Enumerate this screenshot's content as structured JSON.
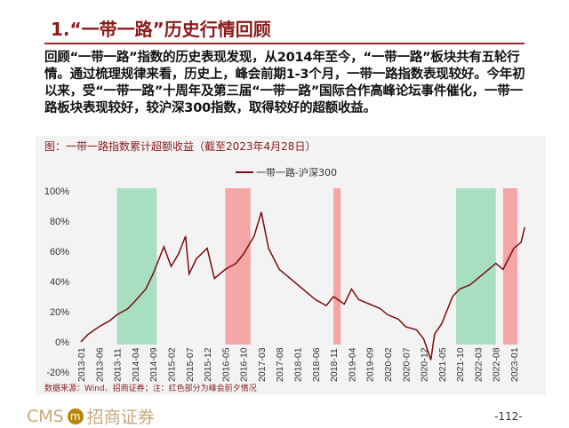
{
  "title": "1.“一带一路”历史行情回顾",
  "paragraph": "回顾“一带一路”指数的历史表现发现，从2014年至今，“一带一路”板块共有五轮行情。通过梳理规律来看，历史上，峰会前期1-3个月，一带一路指数表现较好。今年初以来，受“一带一路”十周年及第三届“一带一路”国际合作高峰论坛事件催化，一带一路板块表现较好，较沪深300指数，取得较好的超额收益。",
  "chart_caption": "图：一带一路指数累计超额收益（截至2023年4月28日）",
  "source": "数据来源：Wind、招商证券；注：红色部分为峰会前夕情况",
  "logo": "CMS 招商证券",
  "page_number": "-112-",
  "chart_data": {
    "type": "line",
    "legend": "一带一路-沪深300",
    "legend_position": "top",
    "line_color": "#7a0c0c",
    "ylim": [
      -20,
      100
    ],
    "y_ticks": [
      "-20%",
      "0%",
      "20%",
      "40%",
      "60%",
      "80%",
      "100%"
    ],
    "x_ticks": [
      "2013-01",
      "2013-06",
      "2013-11",
      "2014-04",
      "2014-09",
      "2015-02",
      "2015-07",
      "2015-12",
      "2016-05",
      "2016-10",
      "2017-03",
      "2017-08",
      "2018-01",
      "2018-06",
      "2018-11",
      "2019-04",
      "2019-09",
      "2020-02",
      "2020-07",
      "2020-12",
      "2021-05",
      "2021-10",
      "2022-03",
      "2022-08",
      "2023-01"
    ],
    "shaded_regions": [
      {
        "start": "2013-11",
        "end": "2014-10",
        "color": "#a8dfc0"
      },
      {
        "start": "2016-05",
        "end": "2016-12",
        "color": "#f4a6a6"
      },
      {
        "start": "2018-11",
        "end": "2019-01",
        "color": "#f4a6a6"
      },
      {
        "start": "2021-09",
        "end": "2022-08",
        "color": "#a8dfc0"
      },
      {
        "start": "2022-10",
        "end": "2023-02",
        "color": "#f4a6a6"
      }
    ],
    "series": [
      {
        "name": "一带一路-沪深300",
        "points": [
          [
            "2013-01",
            0
          ],
          [
            "2013-03",
            5
          ],
          [
            "2013-06",
            10
          ],
          [
            "2013-09",
            14
          ],
          [
            "2013-11",
            18
          ],
          [
            "2014-02",
            22
          ],
          [
            "2014-04",
            27
          ],
          [
            "2014-07",
            35
          ],
          [
            "2014-09",
            45
          ],
          [
            "2014-12",
            63
          ],
          [
            "2015-02",
            50
          ],
          [
            "2015-04",
            58
          ],
          [
            "2015-06",
            70
          ],
          [
            "2015-07",
            45
          ],
          [
            "2015-09",
            55
          ],
          [
            "2015-12",
            62
          ],
          [
            "2016-02",
            42
          ],
          [
            "2016-05",
            48
          ],
          [
            "2016-08",
            52
          ],
          [
            "2016-10",
            58
          ],
          [
            "2017-01",
            70
          ],
          [
            "2017-03",
            86
          ],
          [
            "2017-05",
            62
          ],
          [
            "2017-08",
            48
          ],
          [
            "2017-11",
            42
          ],
          [
            "2018-01",
            38
          ],
          [
            "2018-04",
            32
          ],
          [
            "2018-06",
            28
          ],
          [
            "2018-09",
            24
          ],
          [
            "2018-11",
            30
          ],
          [
            "2019-02",
            25
          ],
          [
            "2019-04",
            35
          ],
          [
            "2019-06",
            28
          ],
          [
            "2019-09",
            25
          ],
          [
            "2019-12",
            22
          ],
          [
            "2020-02",
            18
          ],
          [
            "2020-05",
            15
          ],
          [
            "2020-07",
            10
          ],
          [
            "2020-10",
            8
          ],
          [
            "2020-12",
            2
          ],
          [
            "2021-02",
            -12
          ],
          [
            "2021-03",
            5
          ],
          [
            "2021-05",
            12
          ],
          [
            "2021-08",
            30
          ],
          [
            "2021-10",
            35
          ],
          [
            "2022-01",
            38
          ],
          [
            "2022-03",
            42
          ],
          [
            "2022-06",
            48
          ],
          [
            "2022-08",
            52
          ],
          [
            "2022-10",
            48
          ],
          [
            "2023-01",
            62
          ],
          [
            "2023-03",
            66
          ],
          [
            "2023-04",
            76
          ]
        ]
      }
    ]
  }
}
